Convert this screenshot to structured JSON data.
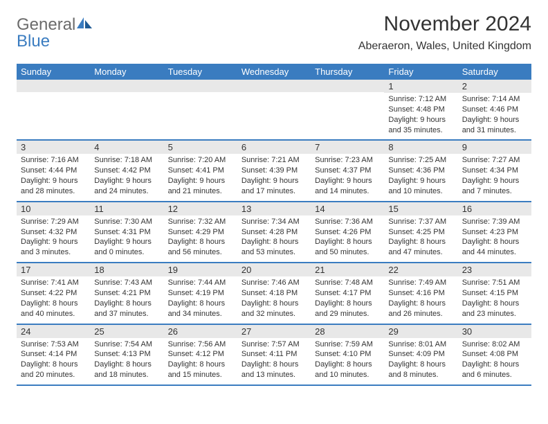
{
  "colors": {
    "header_bg": "#3a7cc0",
    "header_text": "#ffffff",
    "daybar_bg": "#e8e8e8",
    "border": "#3a7cc0",
    "body_bg": "#ffffff",
    "text": "#333333",
    "logo_gray": "#6b6b6b",
    "logo_blue": "#3a7cc0"
  },
  "logo": {
    "word1": "General",
    "word2": "Blue"
  },
  "title": "November 2024",
  "location": "Aberaeron, Wales, United Kingdom",
  "day_names": [
    "Sunday",
    "Monday",
    "Tuesday",
    "Wednesday",
    "Thursday",
    "Friday",
    "Saturday"
  ],
  "weeks": [
    [
      null,
      null,
      null,
      null,
      null,
      {
        "n": "1",
        "sr": "7:12 AM",
        "ss": "4:48 PM",
        "dl": "9 hours and 35 minutes."
      },
      {
        "n": "2",
        "sr": "7:14 AM",
        "ss": "4:46 PM",
        "dl": "9 hours and 31 minutes."
      }
    ],
    [
      {
        "n": "3",
        "sr": "7:16 AM",
        "ss": "4:44 PM",
        "dl": "9 hours and 28 minutes."
      },
      {
        "n": "4",
        "sr": "7:18 AM",
        "ss": "4:42 PM",
        "dl": "9 hours and 24 minutes."
      },
      {
        "n": "5",
        "sr": "7:20 AM",
        "ss": "4:41 PM",
        "dl": "9 hours and 21 minutes."
      },
      {
        "n": "6",
        "sr": "7:21 AM",
        "ss": "4:39 PM",
        "dl": "9 hours and 17 minutes."
      },
      {
        "n": "7",
        "sr": "7:23 AM",
        "ss": "4:37 PM",
        "dl": "9 hours and 14 minutes."
      },
      {
        "n": "8",
        "sr": "7:25 AM",
        "ss": "4:36 PM",
        "dl": "9 hours and 10 minutes."
      },
      {
        "n": "9",
        "sr": "7:27 AM",
        "ss": "4:34 PM",
        "dl": "9 hours and 7 minutes."
      }
    ],
    [
      {
        "n": "10",
        "sr": "7:29 AM",
        "ss": "4:32 PM",
        "dl": "9 hours and 3 minutes."
      },
      {
        "n": "11",
        "sr": "7:30 AM",
        "ss": "4:31 PM",
        "dl": "9 hours and 0 minutes."
      },
      {
        "n": "12",
        "sr": "7:32 AM",
        "ss": "4:29 PM",
        "dl": "8 hours and 56 minutes."
      },
      {
        "n": "13",
        "sr": "7:34 AM",
        "ss": "4:28 PM",
        "dl": "8 hours and 53 minutes."
      },
      {
        "n": "14",
        "sr": "7:36 AM",
        "ss": "4:26 PM",
        "dl": "8 hours and 50 minutes."
      },
      {
        "n": "15",
        "sr": "7:37 AM",
        "ss": "4:25 PM",
        "dl": "8 hours and 47 minutes."
      },
      {
        "n": "16",
        "sr": "7:39 AM",
        "ss": "4:23 PM",
        "dl": "8 hours and 44 minutes."
      }
    ],
    [
      {
        "n": "17",
        "sr": "7:41 AM",
        "ss": "4:22 PM",
        "dl": "8 hours and 40 minutes."
      },
      {
        "n": "18",
        "sr": "7:43 AM",
        "ss": "4:21 PM",
        "dl": "8 hours and 37 minutes."
      },
      {
        "n": "19",
        "sr": "7:44 AM",
        "ss": "4:19 PM",
        "dl": "8 hours and 34 minutes."
      },
      {
        "n": "20",
        "sr": "7:46 AM",
        "ss": "4:18 PM",
        "dl": "8 hours and 32 minutes."
      },
      {
        "n": "21",
        "sr": "7:48 AM",
        "ss": "4:17 PM",
        "dl": "8 hours and 29 minutes."
      },
      {
        "n": "22",
        "sr": "7:49 AM",
        "ss": "4:16 PM",
        "dl": "8 hours and 26 minutes."
      },
      {
        "n": "23",
        "sr": "7:51 AM",
        "ss": "4:15 PM",
        "dl": "8 hours and 23 minutes."
      }
    ],
    [
      {
        "n": "24",
        "sr": "7:53 AM",
        "ss": "4:14 PM",
        "dl": "8 hours and 20 minutes."
      },
      {
        "n": "25",
        "sr": "7:54 AM",
        "ss": "4:13 PM",
        "dl": "8 hours and 18 minutes."
      },
      {
        "n": "26",
        "sr": "7:56 AM",
        "ss": "4:12 PM",
        "dl": "8 hours and 15 minutes."
      },
      {
        "n": "27",
        "sr": "7:57 AM",
        "ss": "4:11 PM",
        "dl": "8 hours and 13 minutes."
      },
      {
        "n": "28",
        "sr": "7:59 AM",
        "ss": "4:10 PM",
        "dl": "8 hours and 10 minutes."
      },
      {
        "n": "29",
        "sr": "8:01 AM",
        "ss": "4:09 PM",
        "dl": "8 hours and 8 minutes."
      },
      {
        "n": "30",
        "sr": "8:02 AM",
        "ss": "4:08 PM",
        "dl": "8 hours and 6 minutes."
      }
    ]
  ],
  "labels": {
    "sunrise": "Sunrise: ",
    "sunset": "Sunset: ",
    "daylight": "Daylight: "
  }
}
